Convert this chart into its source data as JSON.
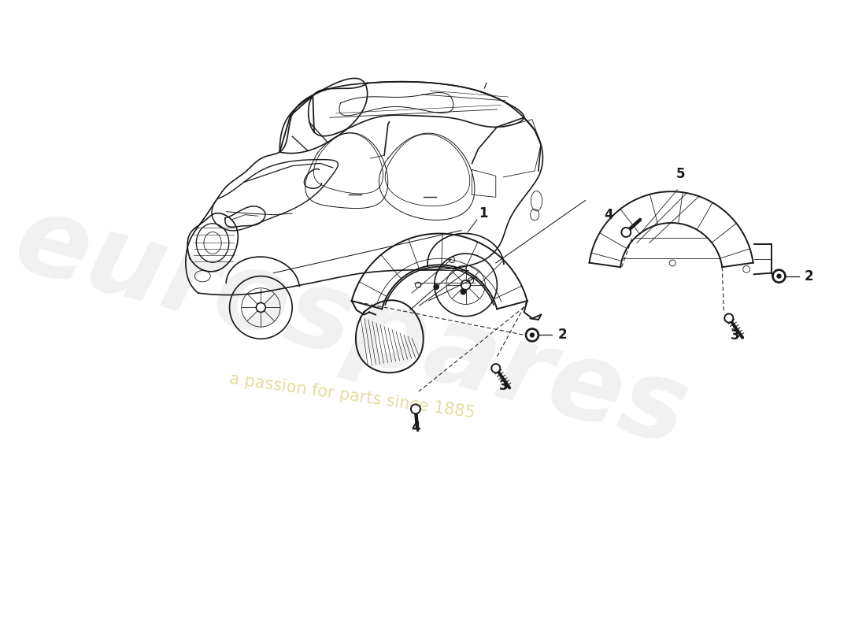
{
  "background_color": "#ffffff",
  "line_color": "#1a1a1a",
  "watermark_main": "eurospares",
  "watermark_sub": "a passion for parts since 1885",
  "watermark_color_main": "#c0c0c0",
  "watermark_color_sub": "#cfc050",
  "lw_car": 1.2,
  "lw_part": 1.4,
  "lw_thin": 0.6,
  "label_fontsize": 12,
  "fig_width": 11.0,
  "fig_height": 8.0,
  "dpi": 100,
  "xlim": [
    0,
    11
  ],
  "ylim": [
    0,
    8
  ]
}
